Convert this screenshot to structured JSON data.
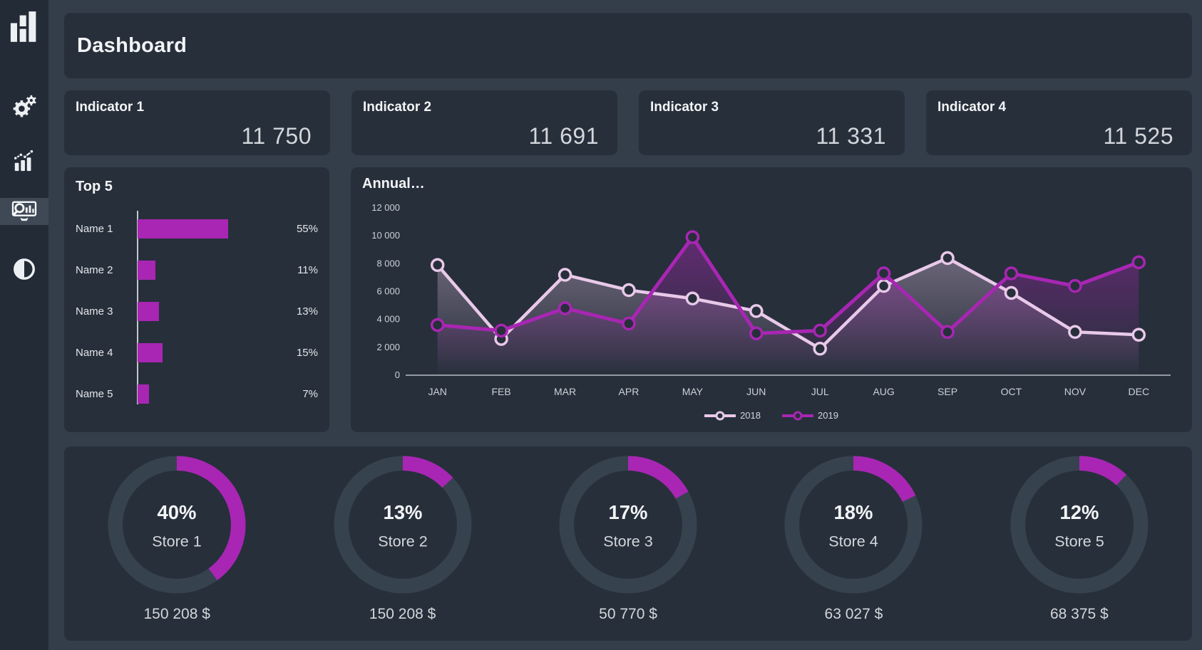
{
  "colors": {
    "page_bg": "#343e4b",
    "card_bg": "#272f3b",
    "sidebar_bg": "#232b36",
    "sidebar_active": "#3e4955",
    "accent": "#a826b3",
    "ring": "#37424f",
    "text_primary": "#f2f4f6",
    "text_secondary": "#d3d7db",
    "axis": "#c7cbd1"
  },
  "sidebar": {
    "items": [
      {
        "name": "logo",
        "icon": "bar-chart-logo-icon",
        "active": false
      },
      {
        "name": "settings",
        "icon": "gears-icon",
        "active": false
      },
      {
        "name": "analytics",
        "icon": "chart-trend-icon",
        "active": false
      },
      {
        "name": "dashboard-search",
        "icon": "screen-magnifier-icon",
        "active": true
      },
      {
        "name": "theme-contrast",
        "icon": "contrast-icon",
        "active": false
      }
    ]
  },
  "header": {
    "title": "Dashboard"
  },
  "indicators": [
    {
      "label": "Indicator 1",
      "value": "11 750"
    },
    {
      "label": "Indicator 2",
      "value": "11 691"
    },
    {
      "label": "Indicator 3",
      "value": "11 331"
    },
    {
      "label": "Indicator 4",
      "value": "11 525"
    }
  ],
  "chart_data": [
    {
      "id": "top5",
      "type": "bar",
      "orientation": "horizontal",
      "title": "Top 5",
      "categories": [
        "Name 1",
        "Name 2",
        "Name 3",
        "Name 4",
        "Name 5"
      ],
      "values": [
        55,
        11,
        13,
        15,
        7
      ],
      "value_labels": [
        "55%",
        "11%",
        "13%",
        "15%",
        "7%"
      ],
      "bar_color": "#a826b3",
      "xlim": [
        0,
        100
      ],
      "grid": false
    },
    {
      "id": "annual",
      "type": "line",
      "title": "Annual…",
      "x": [
        "JAN",
        "FEB",
        "MAR",
        "APR",
        "MAY",
        "JUN",
        "JUL",
        "AUG",
        "SEP",
        "OCT",
        "NOV",
        "DEC"
      ],
      "series": [
        {
          "name": "2018",
          "color": "#e9c9e9",
          "values": [
            7900,
            2600,
            7200,
            6100,
            5500,
            4600,
            1900,
            6400,
            8400,
            5900,
            3100,
            2900
          ]
        },
        {
          "name": "2019",
          "color": "#a826b3",
          "values": [
            3600,
            3200,
            4800,
            3700,
            9900,
            3000,
            3200,
            7300,
            3100,
            7300,
            6400,
            8100
          ]
        }
      ],
      "ylim": [
        0,
        12000
      ],
      "yticks": [
        0,
        2000,
        4000,
        6000,
        8000,
        10000,
        12000
      ],
      "ytick_labels": [
        "0",
        "2 000",
        "4 000",
        "6 000",
        "8 000",
        "10 000",
        "12 000"
      ],
      "grid": false,
      "area_fill": true,
      "marker": "circle-hollow",
      "legend_position": "bottom"
    },
    {
      "id": "stores",
      "type": "donut",
      "arc_color": "#a826b3",
      "track_color": "#37424f",
      "items": [
        {
          "pct": 40,
          "pct_label": "40%",
          "label": "Store 1",
          "amount": "150 208 $"
        },
        {
          "pct": 13,
          "pct_label": "13%",
          "label": "Store 2",
          "amount": "150 208 $"
        },
        {
          "pct": 17,
          "pct_label": "17%",
          "label": "Store 3",
          "amount": "50 770 $"
        },
        {
          "pct": 18,
          "pct_label": "18%",
          "label": "Store 4",
          "amount": "63 027 $"
        },
        {
          "pct": 12,
          "pct_label": "12%",
          "label": "Store 5",
          "amount": "68 375 $"
        }
      ]
    }
  ]
}
